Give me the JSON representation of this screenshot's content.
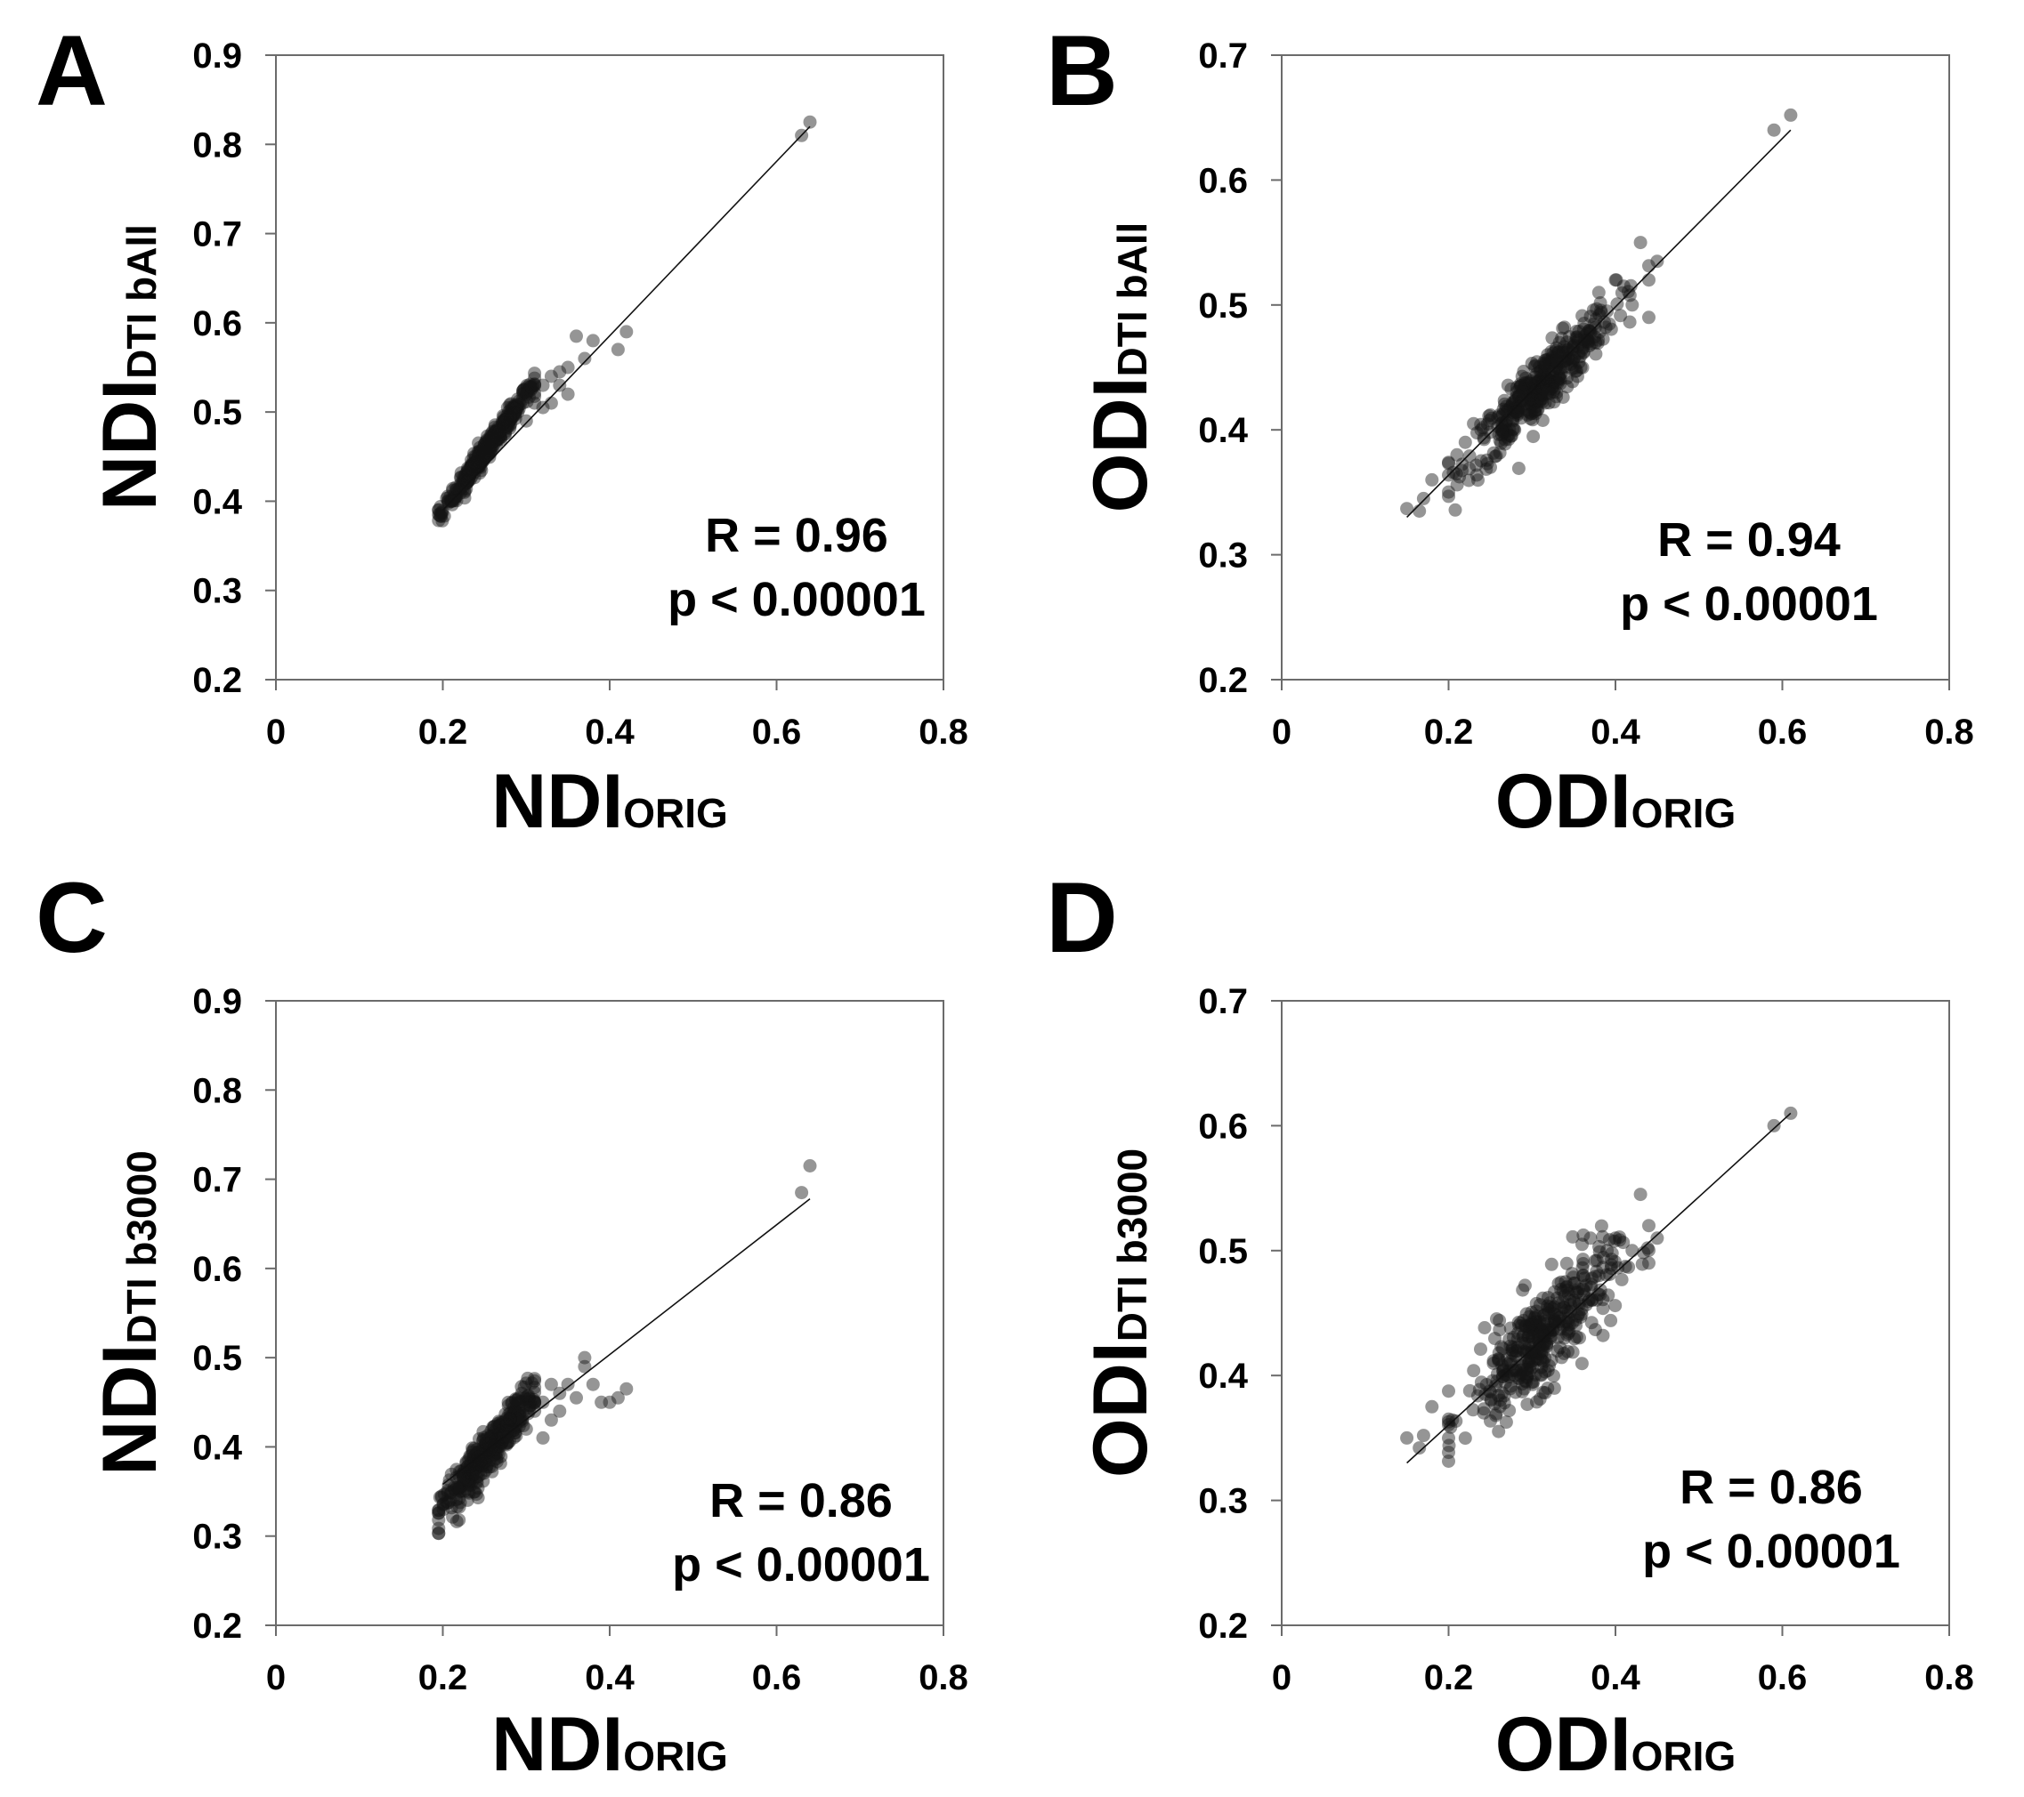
{
  "chart_data": [
    {
      "type": "scatter",
      "panel_label": "A",
      "xlabel": "NDI",
      "xlabel_sub": "ORIG",
      "ylabel": "NDI",
      "ylabel_sub": "DTI bAll",
      "xlim": [
        0,
        0.8
      ],
      "ylim": [
        0.2,
        0.9
      ],
      "xticks": [
        "0",
        "0.2",
        "0.4",
        "0.6",
        "0.8"
      ],
      "yticks": [
        "0.2",
        "0.3",
        "0.4",
        "0.5",
        "0.6",
        "0.7",
        "0.8",
        "0.9"
      ],
      "stat_r": "R = 0.96",
      "stat_p": "p < 0.00001",
      "fit_line": {
        "x": [
          0.2,
          0.64
        ],
        "y": [
          0.39,
          0.82
        ]
      },
      "cluster": {
        "x_center": 0.255,
        "x_spread": 0.028,
        "x_min": 0.195,
        "x_max": 0.31,
        "slope": 1.3,
        "intercept": 0.13,
        "noise": 0.006
      },
      "points": [
        {
          "x": 0.36,
          "y": 0.585
        },
        {
          "x": 0.37,
          "y": 0.56
        },
        {
          "x": 0.38,
          "y": 0.58
        },
        {
          "x": 0.41,
          "y": 0.57
        },
        {
          "x": 0.42,
          "y": 0.59
        },
        {
          "x": 0.35,
          "y": 0.55
        },
        {
          "x": 0.34,
          "y": 0.545
        },
        {
          "x": 0.33,
          "y": 0.54
        },
        {
          "x": 0.32,
          "y": 0.53
        },
        {
          "x": 0.35,
          "y": 0.52
        },
        {
          "x": 0.33,
          "y": 0.51
        },
        {
          "x": 0.31,
          "y": 0.51
        },
        {
          "x": 0.3,
          "y": 0.49
        },
        {
          "x": 0.29,
          "y": 0.5
        },
        {
          "x": 0.32,
          "y": 0.505
        },
        {
          "x": 0.34,
          "y": 0.53
        },
        {
          "x": 0.63,
          "y": 0.81
        },
        {
          "x": 0.64,
          "y": 0.825
        }
      ]
    },
    {
      "type": "scatter",
      "panel_label": "B",
      "xlabel": "ODI",
      "xlabel_sub": "ORIG",
      "ylabel": "ODI",
      "ylabel_sub": "DTI bAll",
      "xlim": [
        0,
        0.8
      ],
      "ylim": [
        0.2,
        0.7
      ],
      "xticks": [
        "0",
        "0.2",
        "0.4",
        "0.6",
        "0.8"
      ],
      "yticks": [
        "0.2",
        "0.3",
        "0.4",
        "0.5",
        "0.6",
        "0.7"
      ],
      "stat_r": "R = 0.94",
      "stat_p": "p < 0.00001",
      "fit_line": {
        "x": [
          0.15,
          0.61
        ],
        "y": [
          0.33,
          0.64
        ]
      },
      "cluster": {
        "x_center": 0.31,
        "x_spread": 0.045,
        "x_min": 0.2,
        "x_max": 0.44,
        "slope": 0.67,
        "intercept": 0.227,
        "noise": 0.012
      },
      "points": [
        {
          "x": 0.15,
          "y": 0.337
        },
        {
          "x": 0.165,
          "y": 0.335
        },
        {
          "x": 0.17,
          "y": 0.345
        },
        {
          "x": 0.18,
          "y": 0.36
        },
        {
          "x": 0.21,
          "y": 0.38
        },
        {
          "x": 0.22,
          "y": 0.39
        },
        {
          "x": 0.23,
          "y": 0.405
        },
        {
          "x": 0.42,
          "y": 0.5
        },
        {
          "x": 0.43,
          "y": 0.55
        },
        {
          "x": 0.44,
          "y": 0.52
        },
        {
          "x": 0.45,
          "y": 0.535
        },
        {
          "x": 0.41,
          "y": 0.515
        },
        {
          "x": 0.4,
          "y": 0.52
        },
        {
          "x": 0.38,
          "y": 0.51
        },
        {
          "x": 0.44,
          "y": 0.49
        },
        {
          "x": 0.39,
          "y": 0.495
        },
        {
          "x": 0.59,
          "y": 0.64
        },
        {
          "x": 0.61,
          "y": 0.652
        }
      ]
    },
    {
      "type": "scatter",
      "panel_label": "C",
      "xlabel": "NDI",
      "xlabel_sub": "ORIG",
      "ylabel": "NDI",
      "ylabel_sub": "DTI b3000",
      "xlim": [
        0,
        0.8
      ],
      "ylim": [
        0.2,
        0.9
      ],
      "xticks": [
        "0",
        "0.2",
        "0.4",
        "0.6",
        "0.8"
      ],
      "yticks": [
        "0.2",
        "0.3",
        "0.4",
        "0.5",
        "0.6",
        "0.7",
        "0.8",
        "0.9"
      ],
      "stat_r": "R = 0.86",
      "stat_p": "p < 0.00001",
      "fit_line": {
        "x": [
          0.2,
          0.64
        ],
        "y": [
          0.358,
          0.678
        ]
      },
      "cluster": {
        "x_center": 0.255,
        "x_spread": 0.028,
        "x_min": 0.195,
        "x_max": 0.31,
        "slope": 1.2,
        "intercept": 0.09,
        "noise": 0.012
      },
      "points": [
        {
          "x": 0.37,
          "y": 0.5
        },
        {
          "x": 0.37,
          "y": 0.49
        },
        {
          "x": 0.38,
          "y": 0.47
        },
        {
          "x": 0.39,
          "y": 0.45
        },
        {
          "x": 0.4,
          "y": 0.45
        },
        {
          "x": 0.41,
          "y": 0.455
        },
        {
          "x": 0.42,
          "y": 0.465
        },
        {
          "x": 0.35,
          "y": 0.47
        },
        {
          "x": 0.33,
          "y": 0.47
        },
        {
          "x": 0.34,
          "y": 0.46
        },
        {
          "x": 0.36,
          "y": 0.455
        },
        {
          "x": 0.32,
          "y": 0.45
        },
        {
          "x": 0.33,
          "y": 0.43
        },
        {
          "x": 0.31,
          "y": 0.44
        },
        {
          "x": 0.3,
          "y": 0.42
        },
        {
          "x": 0.32,
          "y": 0.41
        },
        {
          "x": 0.34,
          "y": 0.44
        },
        {
          "x": 0.63,
          "y": 0.685
        },
        {
          "x": 0.64,
          "y": 0.715
        }
      ]
    },
    {
      "type": "scatter",
      "panel_label": "D",
      "xlabel": "ODI",
      "xlabel_sub": "ORIG",
      "ylabel": "ODI",
      "ylabel_sub": "DTI b3000",
      "xlim": [
        0,
        0.8
      ],
      "ylim": [
        0.2,
        0.7
      ],
      "xticks": [
        "0",
        "0.2",
        "0.4",
        "0.6",
        "0.8"
      ],
      "yticks": [
        "0.2",
        "0.3",
        "0.4",
        "0.5",
        "0.6",
        "0.7"
      ],
      "stat_r": "R = 0.86",
      "stat_p": "p < 0.00001",
      "fit_line": {
        "x": [
          0.15,
          0.61
        ],
        "y": [
          0.33,
          0.61
        ]
      },
      "cluster": {
        "x_center": 0.31,
        "x_spread": 0.045,
        "x_min": 0.2,
        "x_max": 0.44,
        "slope": 0.61,
        "intercept": 0.24,
        "noise": 0.02
      },
      "points": [
        {
          "x": 0.15,
          "y": 0.35
        },
        {
          "x": 0.165,
          "y": 0.342
        },
        {
          "x": 0.17,
          "y": 0.352
        },
        {
          "x": 0.18,
          "y": 0.375
        },
        {
          "x": 0.2,
          "y": 0.365
        },
        {
          "x": 0.43,
          "y": 0.545
        },
        {
          "x": 0.44,
          "y": 0.52
        },
        {
          "x": 0.45,
          "y": 0.51
        },
        {
          "x": 0.4,
          "y": 0.51
        },
        {
          "x": 0.39,
          "y": 0.5
        },
        {
          "x": 0.42,
          "y": 0.5
        },
        {
          "x": 0.44,
          "y": 0.49
        },
        {
          "x": 0.37,
          "y": 0.51
        },
        {
          "x": 0.36,
          "y": 0.505
        },
        {
          "x": 0.38,
          "y": 0.48
        },
        {
          "x": 0.34,
          "y": 0.475
        },
        {
          "x": 0.35,
          "y": 0.46
        },
        {
          "x": 0.59,
          "y": 0.6
        },
        {
          "x": 0.61,
          "y": 0.61
        }
      ]
    }
  ]
}
